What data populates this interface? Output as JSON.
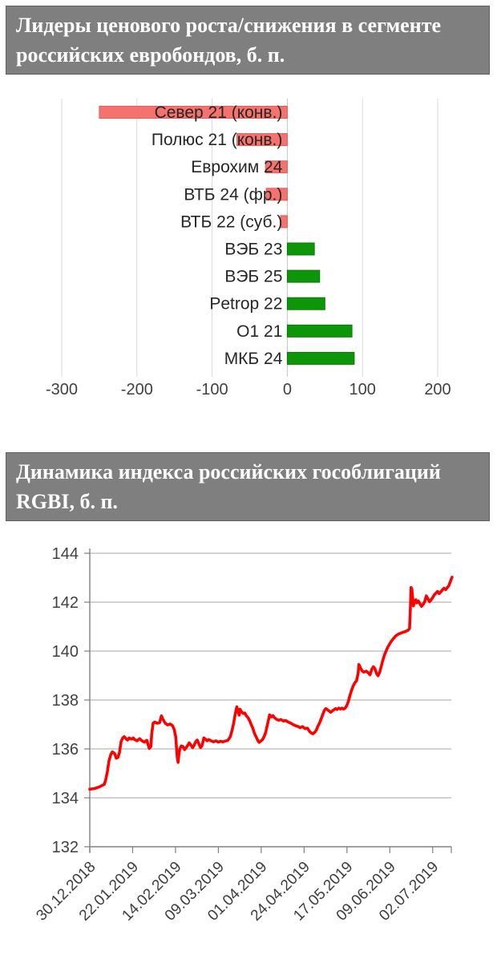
{
  "chart_data": [
    {
      "type": "bar",
      "orientation": "horizontal",
      "title": "Лидеры ценового роста/снижения в сегменте российских евробондов, б. п.",
      "categories": [
        "Север 21 (конв.)",
        "Полюс 21 (конв.)",
        "Еврохим 24",
        "ВТБ 24 (фр.)",
        "ВТБ 22 (суб.)",
        "ВЭБ 23",
        "ВЭБ 25",
        "Petrop 22",
        "O1 21",
        "МКБ 24"
      ],
      "values": [
        -250,
        -67,
        -29,
        -28,
        -9,
        36,
        43,
        50,
        86,
        89
      ],
      "x_ticks": [
        -300,
        -200,
        -100,
        0,
        100,
        200
      ],
      "xlim": [
        -300,
        200
      ],
      "grid": "vertical",
      "negative_color": "#f4736e",
      "negative_edge": "#e05d5b",
      "positive_color": "#0d9609",
      "positive_edge": "#0b7a07",
      "header_bg": "#7f7f7f",
      "header_text_color": "#ffffff"
    },
    {
      "type": "line",
      "title": "Динамика индекса российских гособлигаций RGBI, б. п.",
      "series_name": "RGBI",
      "line_color": "#ff0000",
      "y_ticks": [
        144,
        142,
        140,
        138,
        136,
        134,
        132
      ],
      "ylim": [
        132,
        144
      ],
      "x_tick_labels": [
        "30.12.2018",
        "22.01.2019",
        "14.02.2019",
        "09.03.2019",
        "01.04.2019",
        "24.04.2019",
        "17.05.2019",
        "09.06.2019",
        "02.07.2019"
      ],
      "x_tick_days": [
        0,
        23,
        46,
        69,
        92,
        115,
        138,
        161,
        184
      ],
      "x_max_days": 194,
      "grid": "horizontal",
      "points": [
        [
          0,
          134.35
        ],
        [
          2.6,
          134.38
        ],
        [
          5.2,
          134.45
        ],
        [
          7.8,
          134.55
        ],
        [
          8.6,
          134.75
        ],
        [
          9.5,
          135.1
        ],
        [
          10.3,
          135.5
        ],
        [
          11.2,
          135.75
        ],
        [
          12.1,
          135.88
        ],
        [
          13.4,
          135.8
        ],
        [
          14.2,
          135.62
        ],
        [
          15.1,
          135.65
        ],
        [
          15.9,
          135.85
        ],
        [
          16.8,
          136.3
        ],
        [
          17.7,
          136.45
        ],
        [
          18.5,
          136.5
        ],
        [
          19.4,
          136.42
        ],
        [
          20.3,
          136.36
        ],
        [
          21.1,
          136.45
        ],
        [
          22.4,
          136.4
        ],
        [
          23.3,
          136.45
        ],
        [
          24.1,
          136.38
        ],
        [
          25.4,
          136.33
        ],
        [
          26.7,
          136.42
        ],
        [
          28,
          136.33
        ],
        [
          29.3,
          136.28
        ],
        [
          30.6,
          136.35
        ],
        [
          31.9,
          136.02
        ],
        [
          32.8,
          136.1
        ],
        [
          33.2,
          136.6
        ],
        [
          34,
          137.05
        ],
        [
          34.9,
          137.1
        ],
        [
          36.2,
          137.05
        ],
        [
          37.5,
          137.08
        ],
        [
          38.4,
          137.35
        ],
        [
          39.2,
          137.22
        ],
        [
          40.5,
          137.05
        ],
        [
          41.8,
          136.98
        ],
        [
          43.1,
          137.02
        ],
        [
          44.4,
          136.95
        ],
        [
          45.3,
          136.8
        ],
        [
          46.1,
          136.5
        ],
        [
          46.6,
          136.0
        ],
        [
          47,
          135.6
        ],
        [
          47.4,
          135.45
        ],
        [
          47.8,
          135.75
        ],
        [
          48.3,
          136.0
        ],
        [
          49.1,
          136.12
        ],
        [
          50,
          136.1
        ],
        [
          50.9,
          135.97
        ],
        [
          51.7,
          136.05
        ],
        [
          52.6,
          136.15
        ],
        [
          53.4,
          136.25
        ],
        [
          54.3,
          136.15
        ],
        [
          55.2,
          136.05
        ],
        [
          56,
          136.15
        ],
        [
          56.9,
          136.3
        ],
        [
          57.7,
          136.36
        ],
        [
          58.6,
          136.2
        ],
        [
          59.5,
          136.05
        ],
        [
          60.3,
          136.15
        ],
        [
          61.2,
          136.45
        ],
        [
          62.1,
          136.4
        ],
        [
          62.9,
          136.33
        ],
        [
          63.8,
          136.38
        ],
        [
          65.1,
          136.33
        ],
        [
          66.4,
          136.29
        ],
        [
          67.7,
          136.33
        ],
        [
          68.9,
          136.28
        ],
        [
          70.2,
          136.31
        ],
        [
          71.5,
          136.29
        ],
        [
          72.8,
          136.32
        ],
        [
          74.1,
          136.35
        ],
        [
          75.4,
          136.5
        ],
        [
          76.3,
          136.75
        ],
        [
          77.2,
          137.05
        ],
        [
          78,
          137.4
        ],
        [
          78.9,
          137.72
        ],
        [
          79.7,
          137.5
        ],
        [
          80.2,
          137.38
        ],
        [
          80.6,
          137.62
        ],
        [
          81.4,
          137.52
        ],
        [
          82.3,
          137.45
        ],
        [
          83.2,
          137.47
        ],
        [
          84,
          137.35
        ],
        [
          84.9,
          137.28
        ],
        [
          85.8,
          137.15
        ],
        [
          86.6,
          137.0
        ],
        [
          87.5,
          136.85
        ],
        [
          88.3,
          136.65
        ],
        [
          89.2,
          136.5
        ],
        [
          90.1,
          136.35
        ],
        [
          90.9,
          136.27
        ],
        [
          91.8,
          136.32
        ],
        [
          92.7,
          136.38
        ],
        [
          93.5,
          136.5
        ],
        [
          94.4,
          136.68
        ],
        [
          95.2,
          136.95
        ],
        [
          96.1,
          137.25
        ],
        [
          96.5,
          137.39
        ],
        [
          97.4,
          137.31
        ],
        [
          98.3,
          137.36
        ],
        [
          99.1,
          137.28
        ],
        [
          100,
          137.22
        ],
        [
          101.3,
          137.17
        ],
        [
          102.6,
          137.2
        ],
        [
          103.9,
          137.14
        ],
        [
          105.2,
          137.16
        ],
        [
          106.4,
          137.1
        ],
        [
          107.7,
          137.06
        ],
        [
          109,
          137.0
        ],
        [
          110.3,
          136.95
        ],
        [
          111.6,
          136.92
        ],
        [
          112.9,
          136.87
        ],
        [
          114.2,
          136.91
        ],
        [
          115.5,
          136.83
        ],
        [
          116.8,
          136.85
        ],
        [
          118.1,
          136.7
        ],
        [
          118.9,
          136.65
        ],
        [
          119.8,
          136.62
        ],
        [
          120.7,
          136.68
        ],
        [
          121.5,
          136.76
        ],
        [
          122.4,
          136.92
        ],
        [
          123.3,
          137.06
        ],
        [
          124.1,
          137.22
        ],
        [
          125,
          137.4
        ],
        [
          125.8,
          137.57
        ],
        [
          126.7,
          137.65
        ],
        [
          127.6,
          137.6
        ],
        [
          128.4,
          137.55
        ],
        [
          129.3,
          137.5
        ],
        [
          130.2,
          137.56
        ],
        [
          131,
          137.6
        ],
        [
          131.9,
          137.65
        ],
        [
          132.7,
          137.61
        ],
        [
          133.6,
          137.67
        ],
        [
          134.5,
          137.63
        ],
        [
          135.3,
          137.67
        ],
        [
          136.2,
          137.63
        ],
        [
          137.1,
          137.67
        ],
        [
          137.9,
          137.77
        ],
        [
          138.8,
          137.95
        ],
        [
          139.6,
          138.18
        ],
        [
          140.5,
          138.4
        ],
        [
          141.4,
          138.58
        ],
        [
          142.2,
          138.7
        ],
        [
          143.1,
          138.78
        ],
        [
          144,
          139.1
        ],
        [
          144.4,
          139.45
        ],
        [
          145.3,
          139.3
        ],
        [
          146.1,
          139.2
        ],
        [
          147,
          139.14
        ],
        [
          148.3,
          139.18
        ],
        [
          149.6,
          139.1
        ],
        [
          150.4,
          139.03
        ],
        [
          151.3,
          139.25
        ],
        [
          152.2,
          139.36
        ],
        [
          153,
          139.28
        ],
        [
          153.9,
          139.08
        ],
        [
          154.7,
          138.99
        ],
        [
          155.6,
          139.14
        ],
        [
          156.5,
          139.4
        ],
        [
          157.3,
          139.64
        ],
        [
          158.2,
          139.86
        ],
        [
          159.1,
          140.02
        ],
        [
          159.9,
          140.16
        ],
        [
          160.8,
          140.28
        ],
        [
          161.6,
          140.38
        ],
        [
          162.5,
          140.47
        ],
        [
          163.4,
          140.55
        ],
        [
          164.2,
          140.62
        ],
        [
          165.5,
          140.69
        ],
        [
          166.8,
          140.73
        ],
        [
          168.1,
          140.77
        ],
        [
          169.4,
          140.8
        ],
        [
          170.7,
          140.85
        ],
        [
          171.6,
          140.92
        ],
        [
          172,
          141.7
        ],
        [
          172.4,
          142.6
        ],
        [
          172.8,
          142.55
        ],
        [
          173.7,
          141.85
        ],
        [
          174.1,
          142.0
        ],
        [
          175,
          142.1
        ],
        [
          175.4,
          141.97
        ],
        [
          176.3,
          142.05
        ],
        [
          177.2,
          141.93
        ],
        [
          178,
          141.83
        ],
        [
          178.9,
          141.91
        ],
        [
          179.7,
          142.02
        ],
        [
          180.6,
          142.26
        ],
        [
          181.5,
          142.13
        ],
        [
          182.3,
          142.02
        ],
        [
          183.2,
          142.1
        ],
        [
          184.1,
          142.2
        ],
        [
          184.9,
          142.3
        ],
        [
          185.8,
          142.37
        ],
        [
          186.6,
          142.44
        ],
        [
          187.5,
          142.35
        ],
        [
          188.4,
          142.43
        ],
        [
          189.2,
          142.5
        ],
        [
          190.1,
          142.57
        ],
        [
          191,
          142.51
        ],
        [
          191.8,
          142.59
        ],
        [
          192.7,
          142.68
        ],
        [
          193.5,
          142.84
        ],
        [
          194.4,
          143.02
        ]
      ]
    }
  ]
}
